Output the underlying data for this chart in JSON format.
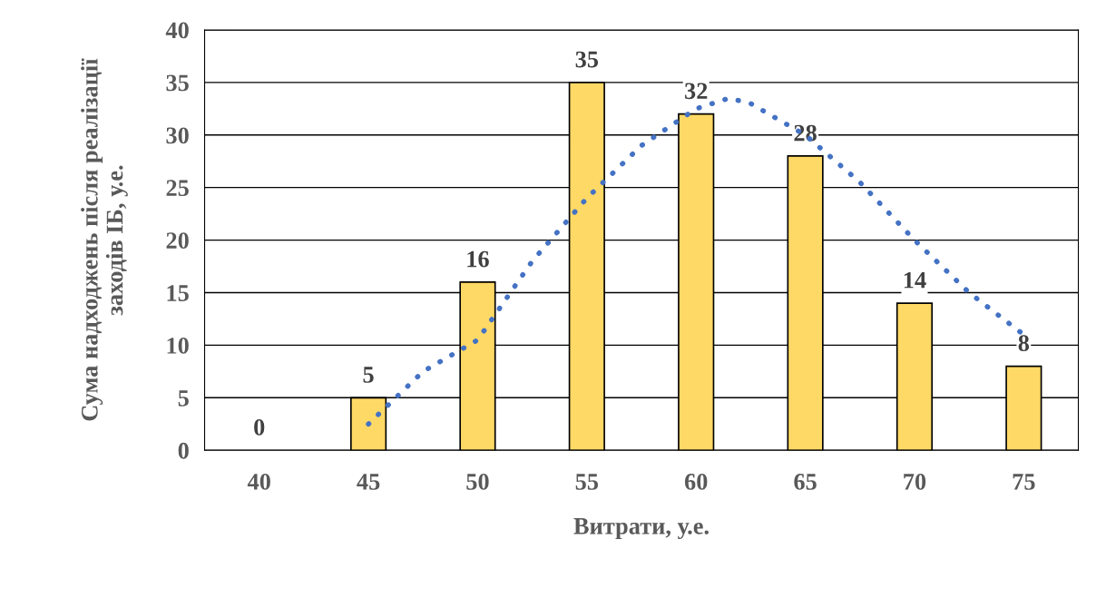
{
  "chart_data": {
    "type": "bar",
    "xlabel": "Витрати, у.е.",
    "ylabel": "Сума надходжень після реалізації\nзаходів ІБ, у.е.",
    "x": [
      40,
      45,
      50,
      55,
      60,
      65,
      70,
      75
    ],
    "xlim": [
      37.5,
      77.5
    ],
    "xticks": [
      40,
      45,
      50,
      55,
      60,
      65,
      70,
      75
    ],
    "ylim": [
      0,
      40
    ],
    "yticks": [
      0,
      5,
      10,
      15,
      20,
      25,
      30,
      35,
      40
    ],
    "grid": "y",
    "legend": false,
    "series": [
      {
        "color": "#ffd966",
        "values": [
          0,
          5,
          16,
          35,
          32,
          28,
          14,
          8
        ],
        "value_labels": [
          "0",
          "5",
          "16",
          "35",
          "32",
          "28",
          "14",
          "8"
        ]
      },
      {
        "type": "line",
        "color": "#4472c4",
        "line_style": "dotted",
        "x": [
          45,
          47.5,
          50,
          52.5,
          55,
          57.5,
          60,
          61.5,
          62.5,
          65,
          67.5,
          70,
          72.5,
          75
        ],
        "values": [
          2.5,
          7.5,
          10.5,
          18,
          24,
          29,
          32.5,
          33.5,
          33,
          30,
          25.5,
          20,
          15,
          11
        ]
      }
    ]
  }
}
